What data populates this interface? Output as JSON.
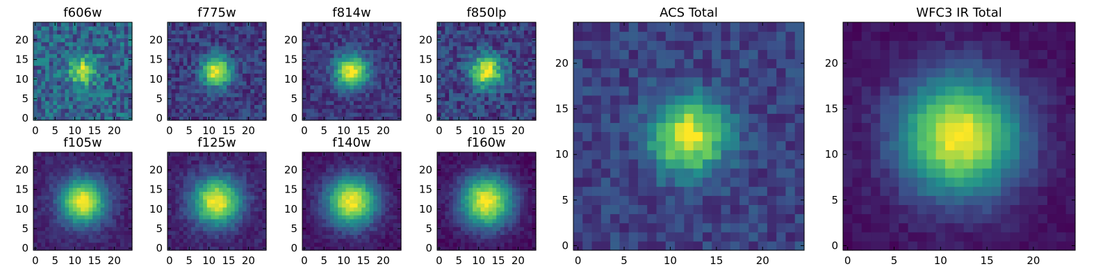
{
  "figure": {
    "colormap": "viridis",
    "colors": [
      "#440154",
      "#3b528b",
      "#21918c",
      "#5ec962",
      "#fde725"
    ]
  },
  "chart_data": [
    {
      "type": "heatmap",
      "title": "f606w",
      "xlim": [
        -0.5,
        24.5
      ],
      "ylim": [
        -0.5,
        24.5
      ],
      "xticks": [
        0,
        5,
        10,
        15,
        20
      ],
      "yticks": [
        0,
        5,
        10,
        15,
        20
      ],
      "grid": false,
      "center": [
        12,
        12
      ],
      "width": 2.2,
      "background": 0.32,
      "noise": 0.18,
      "peak": 1.0
    },
    {
      "type": "heatmap",
      "title": "f775w",
      "xlim": [
        -0.5,
        24.5
      ],
      "ylim": [
        -0.5,
        24.5
      ],
      "xticks": [
        0,
        5,
        10,
        15,
        20
      ],
      "yticks": [
        0,
        5,
        10,
        15,
        20
      ],
      "grid": false,
      "center": [
        12,
        12
      ],
      "width": 2.6,
      "background": 0.18,
      "noise": 0.12,
      "peak": 1.0
    },
    {
      "type": "heatmap",
      "title": "f814w",
      "xlim": [
        -0.5,
        24.5
      ],
      "ylim": [
        -0.5,
        24.5
      ],
      "xticks": [
        0,
        5,
        10,
        15,
        20
      ],
      "yticks": [
        0,
        5,
        10,
        15,
        20
      ],
      "grid": false,
      "center": [
        12,
        12
      ],
      "width": 2.9,
      "background": 0.16,
      "noise": 0.1,
      "peak": 1.0
    },
    {
      "type": "heatmap",
      "title": "f850lp",
      "xlim": [
        -0.5,
        24.5
      ],
      "ylim": [
        -0.5,
        24.5
      ],
      "xticks": [
        0,
        5,
        10,
        15,
        20
      ],
      "yticks": [
        0,
        5,
        10,
        15,
        20
      ],
      "grid": false,
      "center": [
        12,
        12
      ],
      "width": 2.8,
      "background": 0.2,
      "noise": 0.14,
      "peak": 1.0
    },
    {
      "type": "heatmap",
      "title": "f105w",
      "xlim": [
        -0.5,
        24.5
      ],
      "ylim": [
        -0.5,
        24.5
      ],
      "xticks": [
        0,
        5,
        10,
        15,
        20
      ],
      "yticks": [
        0,
        5,
        10,
        15,
        20
      ],
      "grid": false,
      "center": [
        12,
        12
      ],
      "width": 4.0,
      "background": 0.1,
      "noise": 0.06,
      "peak": 1.0
    },
    {
      "type": "heatmap",
      "title": "f125w",
      "xlim": [
        -0.5,
        24.5
      ],
      "ylim": [
        -0.5,
        24.5
      ],
      "xticks": [
        0,
        5,
        10,
        15,
        20
      ],
      "yticks": [
        0,
        5,
        10,
        15,
        20
      ],
      "grid": false,
      "center": [
        12,
        12
      ],
      "width": 4.2,
      "background": 0.1,
      "noise": 0.07,
      "peak": 1.0
    },
    {
      "type": "heatmap",
      "title": "f140w",
      "xlim": [
        -0.5,
        24.5
      ],
      "ylim": [
        -0.5,
        24.5
      ],
      "xticks": [
        0,
        5,
        10,
        15,
        20
      ],
      "yticks": [
        0,
        5,
        10,
        15,
        20
      ],
      "grid": false,
      "center": [
        12,
        12
      ],
      "width": 4.4,
      "background": 0.06,
      "noise": 0.06,
      "peak": 1.0
    },
    {
      "type": "heatmap",
      "title": "f160w",
      "xlim": [
        -0.5,
        24.5
      ],
      "ylim": [
        -0.5,
        24.5
      ],
      "xticks": [
        0,
        5,
        10,
        15,
        20
      ],
      "yticks": [
        0,
        5,
        10,
        15,
        20
      ],
      "grid": false,
      "center": [
        12,
        12
      ],
      "width": 4.6,
      "background": 0.04,
      "noise": 0.06,
      "peak": 1.0
    },
    {
      "type": "heatmap",
      "title": "ACS Total",
      "xlim": [
        -0.5,
        24.5
      ],
      "ylim": [
        -0.5,
        24.5
      ],
      "xticks": [
        0,
        5,
        10,
        15,
        20
      ],
      "yticks": [
        0,
        5,
        10,
        15,
        20
      ],
      "grid": false,
      "center": [
        12,
        12
      ],
      "width": 2.8,
      "background": 0.2,
      "noise": 0.1,
      "peak": 1.0
    },
    {
      "type": "heatmap",
      "title": "WFC3 IR Total",
      "xlim": [
        -0.5,
        24.5
      ],
      "ylim": [
        -0.5,
        24.5
      ],
      "xticks": [
        0,
        5,
        10,
        15,
        20
      ],
      "yticks": [
        0,
        5,
        10,
        15,
        20
      ],
      "grid": false,
      "center": [
        12,
        12
      ],
      "width": 4.5,
      "background": 0.05,
      "noise": 0.05,
      "peak": 1.0
    }
  ]
}
